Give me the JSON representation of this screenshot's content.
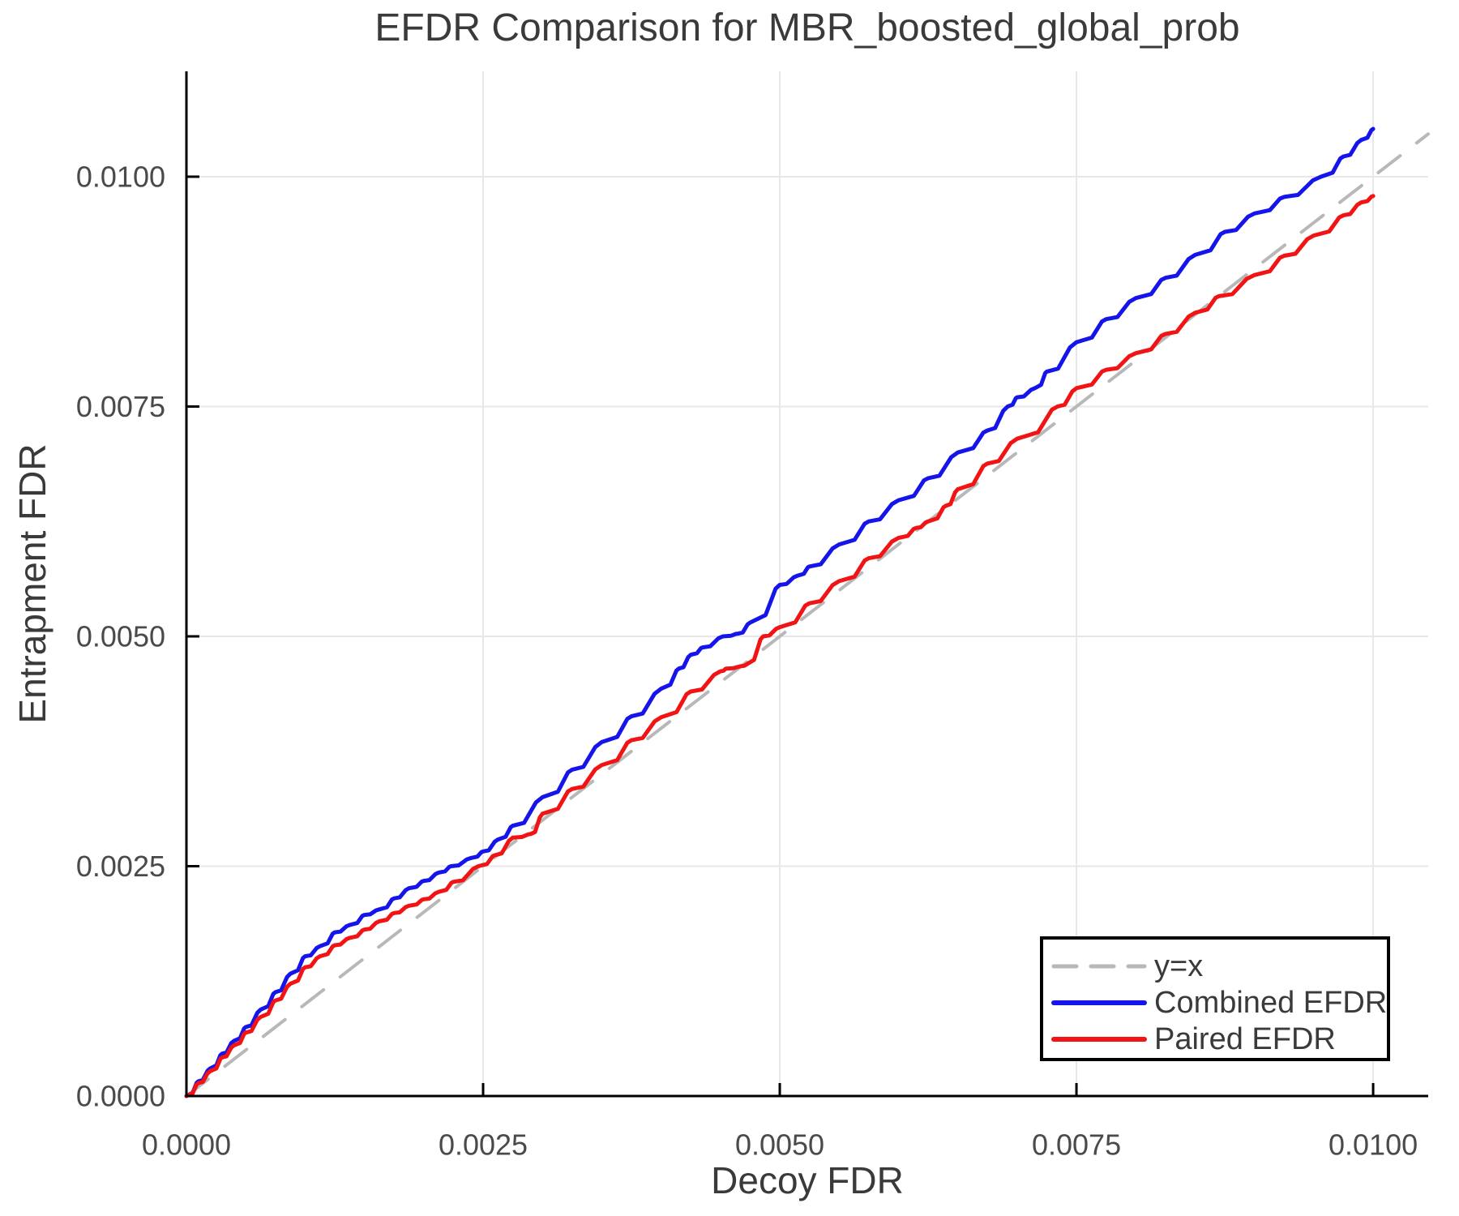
{
  "page": {
    "background": "#ffffff"
  },
  "chart_data": {
    "type": "line",
    "title": "EFDR Comparison for MBR_boosted_global_prob",
    "xlabel": "Decoy FDR",
    "ylabel": "Entrapment FDR",
    "xlim": [
      0,
      0.010464
    ],
    "ylim": [
      0,
      0.011146
    ],
    "grid": true,
    "legend": {
      "position": "bottom-right",
      "entries": [
        "y=x",
        "Combined EFDR",
        "Paired EFDR"
      ]
    },
    "xticks": {
      "values": [
        0,
        0.0025,
        0.005,
        0.0075,
        0.01
      ],
      "labels": [
        "0.0000",
        "0.0025",
        "0.0050",
        "0.0075",
        "0.0100"
      ]
    },
    "yticks": {
      "values": [
        0,
        0.0025,
        0.005,
        0.0075,
        0.01
      ],
      "labels": [
        "0.0000",
        "0.0025",
        "0.0050",
        "0.0075",
        "0.0100"
      ]
    },
    "colors": {
      "axis": "#000000",
      "grid": "#e7e7e7",
      "title": "#3a3a3a",
      "axis_label": "#3a3a3a",
      "tick_label": "#4a4a4a",
      "legend_border": "#000000",
      "legend_bg": "#ffffff"
    },
    "series": [
      {
        "name": "y=x",
        "color": "#b8b8b8",
        "dashed": true,
        "width": 4,
        "jagged": false,
        "points": [
          [
            0,
            0
          ],
          [
            0.010464,
            0.010464
          ]
        ]
      },
      {
        "name": "Combined EFDR",
        "color": "#1414eb",
        "dashed": false,
        "width": 5,
        "jagged": true,
        "points": [
          [
            0,
            0
          ],
          [
            0.0001,
            0.00016
          ],
          [
            0.0002,
            0.0003
          ],
          [
            0.0003,
            0.00046
          ],
          [
            0.0004,
            0.0006
          ],
          [
            0.0005,
            0.00075
          ],
          [
            0.000625,
            0.00094
          ],
          [
            0.00075,
            0.00113
          ],
          [
            0.000875,
            0.00133
          ],
          [
            0.001,
            0.00152
          ],
          [
            0.001125,
            0.00163
          ],
          [
            0.00125,
            0.00178
          ],
          [
            0.001375,
            0.00186
          ],
          [
            0.0015,
            0.00197
          ],
          [
            0.001625,
            0.00203
          ],
          [
            0.00175,
            0.00215
          ],
          [
            0.001875,
            0.00226
          ],
          [
            0.002,
            0.00234
          ],
          [
            0.002125,
            0.00243
          ],
          [
            0.00223,
            0.0025
          ],
          [
            0.0024,
            0.00259
          ],
          [
            0.0025,
            0.00266
          ],
          [
            0.002625,
            0.00279
          ],
          [
            0.00275,
            0.00294
          ],
          [
            0.003,
            0.00325
          ],
          [
            0.00325,
            0.00355
          ],
          [
            0.0035,
            0.00385
          ],
          [
            0.00375,
            0.00413
          ],
          [
            0.004,
            0.00443
          ],
          [
            0.00415,
            0.00465
          ],
          [
            0.00425,
            0.0048
          ],
          [
            0.00435,
            0.00488
          ],
          [
            0.00452,
            0.005
          ],
          [
            0.00465,
            0.00503
          ],
          [
            0.00475,
            0.00515
          ],
          [
            0.005,
            0.00556
          ],
          [
            0.00515,
            0.00566
          ],
          [
            0.00525,
            0.00576
          ],
          [
            0.0055,
            0.006
          ],
          [
            0.00575,
            0.00625
          ],
          [
            0.006,
            0.00648
          ],
          [
            0.00625,
            0.00672
          ],
          [
            0.0065,
            0.007
          ],
          [
            0.00675,
            0.00724
          ],
          [
            0.00692,
            0.0075
          ],
          [
            0.007,
            0.0076
          ],
          [
            0.00715,
            0.0077
          ],
          [
            0.00725,
            0.00788
          ],
          [
            0.0075,
            0.0082
          ],
          [
            0.00775,
            0.00845
          ],
          [
            0.008,
            0.00868
          ],
          [
            0.00825,
            0.0089
          ],
          [
            0.0085,
            0.00915
          ],
          [
            0.00875,
            0.0094
          ],
          [
            0.009,
            0.0096
          ],
          [
            0.00925,
            0.00978
          ],
          [
            0.00956,
            0.01
          ],
          [
            0.00975,
            0.01022
          ],
          [
            0.0099,
            0.0104
          ],
          [
            0.01,
            0.01052
          ]
        ]
      },
      {
        "name": "Paired EFDR",
        "color": "#f21414",
        "dashed": false,
        "width": 5,
        "jagged": true,
        "points": [
          [
            0,
            0
          ],
          [
            0.0001,
            0.00014
          ],
          [
            0.0002,
            0.00027
          ],
          [
            0.0003,
            0.00042
          ],
          [
            0.0004,
            0.00055
          ],
          [
            0.0005,
            0.00069
          ],
          [
            0.000625,
            0.00086
          ],
          [
            0.00075,
            0.00104
          ],
          [
            0.000875,
            0.00122
          ],
          [
            0.001,
            0.0014
          ],
          [
            0.001125,
            0.00152
          ],
          [
            0.00125,
            0.00164
          ],
          [
            0.001375,
            0.00172
          ],
          [
            0.0015,
            0.00181
          ],
          [
            0.001625,
            0.0019
          ],
          [
            0.00175,
            0.00199
          ],
          [
            0.001875,
            0.00207
          ],
          [
            0.002,
            0.00214
          ],
          [
            0.002125,
            0.00222
          ],
          [
            0.00225,
            0.00233
          ],
          [
            0.00246,
            0.0025
          ],
          [
            0.0026,
            0.00262
          ],
          [
            0.00275,
            0.00281
          ],
          [
            0.0029,
            0.00285
          ],
          [
            0.003,
            0.00307
          ],
          [
            0.00325,
            0.00334
          ],
          [
            0.0035,
            0.0036
          ],
          [
            0.00375,
            0.00387
          ],
          [
            0.004,
            0.00412
          ],
          [
            0.00425,
            0.0044
          ],
          [
            0.0045,
            0.00462
          ],
          [
            0.00455,
            0.00465
          ],
          [
            0.0047,
            0.00468
          ],
          [
            0.00486,
            0.005
          ],
          [
            0.005,
            0.0051
          ],
          [
            0.00525,
            0.00536
          ],
          [
            0.0055,
            0.0056
          ],
          [
            0.00575,
            0.00585
          ],
          [
            0.006,
            0.00607
          ],
          [
            0.00615,
            0.00618
          ],
          [
            0.00625,
            0.00625
          ],
          [
            0.0064,
            0.00642
          ],
          [
            0.0065,
            0.0066
          ],
          [
            0.00675,
            0.00688
          ],
          [
            0.007,
            0.00715
          ],
          [
            0.00734,
            0.0075
          ],
          [
            0.0075,
            0.0077
          ],
          [
            0.00775,
            0.0079
          ],
          [
            0.008,
            0.00808
          ],
          [
            0.00825,
            0.00829
          ],
          [
            0.0085,
            0.00852
          ],
          [
            0.0087,
            0.0087
          ],
          [
            0.009,
            0.00893
          ],
          [
            0.00925,
            0.00914
          ],
          [
            0.0095,
            0.00936
          ],
          [
            0.00975,
            0.00958
          ],
          [
            0.0099,
            0.00972
          ],
          [
            0.01,
            0.00979
          ]
        ]
      }
    ]
  }
}
